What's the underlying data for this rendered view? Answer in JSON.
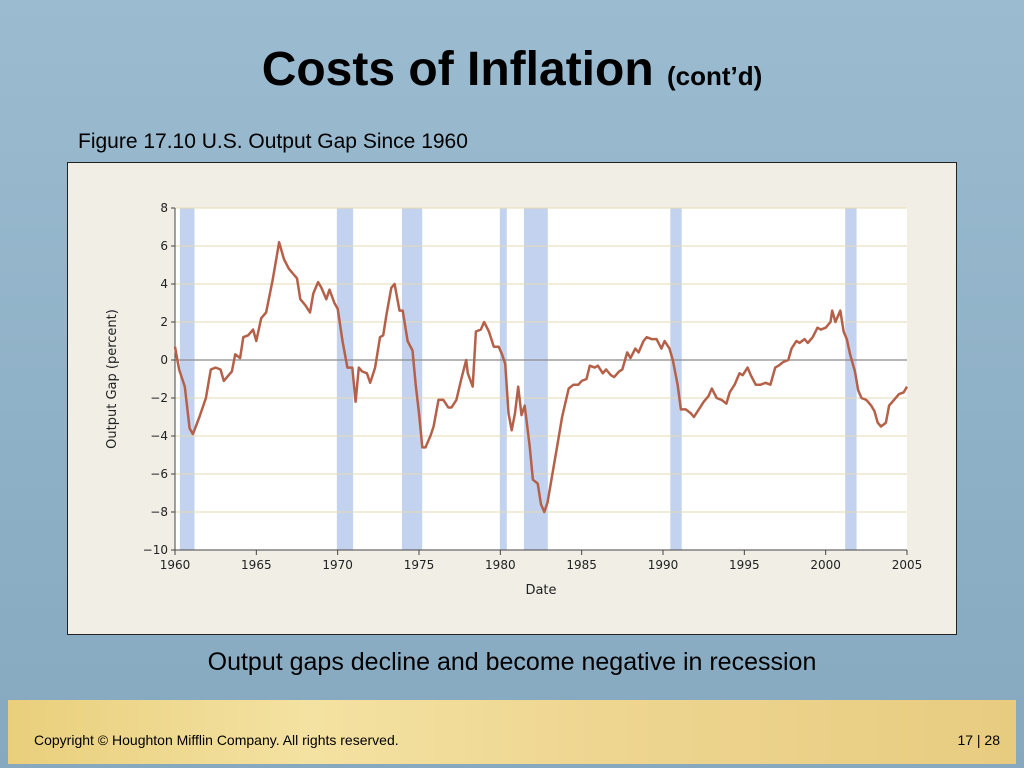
{
  "chart_data": {
    "type": "line",
    "slide_title": "Costs of Inflation",
    "slide_title_note": "(cont’d)",
    "title": "Figure 17.10 U.S. Output Gap Since 1960",
    "ylabel": "Output Gap (percent)",
    "xlabel": "Date",
    "caption": "Output gaps decline and become negative in recession",
    "footer": "Copyright © Houghton Mifflin Company.  All rights reserved.",
    "page": "17 | 28",
    "color": "#b5614a",
    "recession_color": "#c3d3ef",
    "grid": true,
    "xlim": [
      1960,
      2005
    ],
    "xticks": [
      1960,
      1965,
      1970,
      1975,
      1980,
      1985,
      1990,
      1995,
      2000,
      2005
    ],
    "ylim": [
      -10,
      8
    ],
    "yticks": [
      {
        "value": -10,
        "label": "−10"
      },
      {
        "value": -8,
        "label": "−8"
      },
      {
        "value": -6,
        "label": "−6"
      },
      {
        "value": -4,
        "label": "−4"
      },
      {
        "value": -2,
        "label": "−2"
      },
      0,
      2,
      4,
      6,
      8
    ],
    "recessions": [
      [
        1960.3,
        1961.2
      ],
      [
        1969.95,
        1970.95
      ],
      [
        1973.95,
        1975.2
      ],
      [
        1979.97,
        1980.4
      ],
      [
        1981.45,
        1982.92
      ],
      [
        1990.45,
        1991.15
      ],
      [
        2001.2,
        2001.9
      ]
    ],
    "x": [
      1960.0,
      1960.25,
      1960.6,
      1960.9,
      1961.1,
      1961.5,
      1961.9,
      1962.2,
      1962.5,
      1962.8,
      1963.0,
      1963.3,
      1963.5,
      1963.7,
      1964.0,
      1964.2,
      1964.5,
      1964.8,
      1965.0,
      1965.3,
      1965.6,
      1966.0,
      1966.2,
      1966.4,
      1966.7,
      1967.0,
      1967.3,
      1967.5,
      1967.7,
      1968.0,
      1968.3,
      1968.5,
      1968.8,
      1969.0,
      1969.3,
      1969.5,
      1969.8,
      1970.0,
      1970.3,
      1970.6,
      1970.9,
      1971.1,
      1971.3,
      1971.5,
      1971.8,
      1972.0,
      1972.3,
      1972.6,
      1972.8,
      1973.0,
      1973.3,
      1973.5,
      1973.8,
      1974.0,
      1974.3,
      1974.6,
      1974.8,
      1975.0,
      1975.2,
      1975.4,
      1975.7,
      1975.9,
      1976.2,
      1976.5,
      1976.8,
      1977.0,
      1977.3,
      1977.6,
      1977.9,
      1978.0,
      1978.3,
      1978.5,
      1978.8,
      1979.0,
      1979.3,
      1979.6,
      1979.9,
      1980.1,
      1980.3,
      1980.5,
      1980.7,
      1980.9,
      1981.1,
      1981.3,
      1981.5,
      1981.8,
      1982.0,
      1982.3,
      1982.5,
      1982.7,
      1982.9,
      1983.2,
      1983.5,
      1983.8,
      1984.2,
      1984.5,
      1984.8,
      1985.0,
      1985.3,
      1985.5,
      1985.8,
      1986.0,
      1986.3,
      1986.5,
      1986.8,
      1987.0,
      1987.3,
      1987.5,
      1987.8,
      1988.0,
      1988.3,
      1988.5,
      1988.8,
      1989.0,
      1989.3,
      1989.6,
      1989.9,
      1990.1,
      1990.4,
      1990.6,
      1990.9,
      1991.1,
      1991.4,
      1991.7,
      1991.9,
      1992.2,
      1992.5,
      1992.8,
      1993.0,
      1993.3,
      1993.6,
      1993.9,
      1994.1,
      1994.4,
      1994.7,
      1994.9,
      1995.2,
      1995.4,
      1995.7,
      1996.0,
      1996.3,
      1996.6,
      1996.9,
      1997.1,
      1997.4,
      1997.7,
      1997.9,
      1998.2,
      1998.4,
      1998.7,
      1998.9,
      1999.2,
      1999.5,
      1999.7,
      2000.0,
      2000.3,
      2000.4,
      2000.6,
      2000.9,
      2001.1,
      2001.3,
      2001.5,
      2001.8,
      2002.0,
      2002.2,
      2002.5,
      2002.8,
      2003.0,
      2003.2,
      2003.4,
      2003.7,
      2003.9,
      2004.2,
      2004.5,
      2004.8,
      2005.0
    ],
    "values": [
      0.7,
      -0.5,
      -1.4,
      -3.6,
      -3.9,
      -3.0,
      -2.0,
      -0.5,
      -0.4,
      -0.5,
      -1.1,
      -0.8,
      -0.6,
      0.3,
      0.1,
      1.2,
      1.3,
      1.6,
      1.0,
      2.2,
      2.5,
      4.2,
      5.2,
      6.2,
      5.3,
      4.8,
      4.5,
      4.3,
      3.2,
      2.9,
      2.5,
      3.5,
      4.1,
      3.8,
      3.2,
      3.7,
      3.0,
      2.7,
      1.0,
      -0.4,
      -0.4,
      -2.2,
      -0.4,
      -0.6,
      -0.7,
      -1.2,
      -0.4,
      1.2,
      1.3,
      2.4,
      3.8,
      4.0,
      2.6,
      2.6,
      1.0,
      0.5,
      -1.3,
      -2.8,
      -4.6,
      -4.6,
      -4.0,
      -3.5,
      -2.1,
      -2.1,
      -2.5,
      -2.5,
      -2.1,
      -1.0,
      0.0,
      -0.7,
      -1.4,
      1.5,
      1.6,
      2.0,
      1.5,
      0.7,
      0.7,
      0.3,
      -0.2,
      -2.8,
      -3.7,
      -2.8,
      -1.4,
      -2.9,
      -2.4,
      -4.5,
      -6.3,
      -6.5,
      -7.6,
      -8.0,
      -7.5,
      -6.0,
      -4.5,
      -3.0,
      -1.5,
      -1.3,
      -1.3,
      -1.1,
      -1.0,
      -0.3,
      -0.4,
      -0.3,
      -0.7,
      -0.5,
      -0.8,
      -0.9,
      -0.6,
      -0.5,
      0.4,
      0.1,
      0.6,
      0.4,
      1.0,
      1.2,
      1.1,
      1.1,
      0.6,
      1.0,
      0.6,
      0.0,
      -1.3,
      -2.6,
      -2.6,
      -2.8,
      -3.0,
      -2.6,
      -2.2,
      -1.9,
      -1.5,
      -2.0,
      -2.1,
      -2.3,
      -1.7,
      -1.3,
      -0.7,
      -0.8,
      -0.4,
      -0.8,
      -1.3,
      -1.3,
      -1.2,
      -1.3,
      -0.4,
      -0.3,
      -0.1,
      0.0,
      0.6,
      1.0,
      0.9,
      1.1,
      0.9,
      1.2,
      1.7,
      1.6,
      1.7,
      2.0,
      2.6,
      2.0,
      2.6,
      1.5,
      1.1,
      0.3,
      -0.6,
      -1.6,
      -2.0,
      -2.1,
      -2.4,
      -2.7,
      -3.3,
      -3.5,
      -3.3,
      -2.4,
      -2.1,
      -1.8,
      -1.7,
      -1.4
    ]
  }
}
